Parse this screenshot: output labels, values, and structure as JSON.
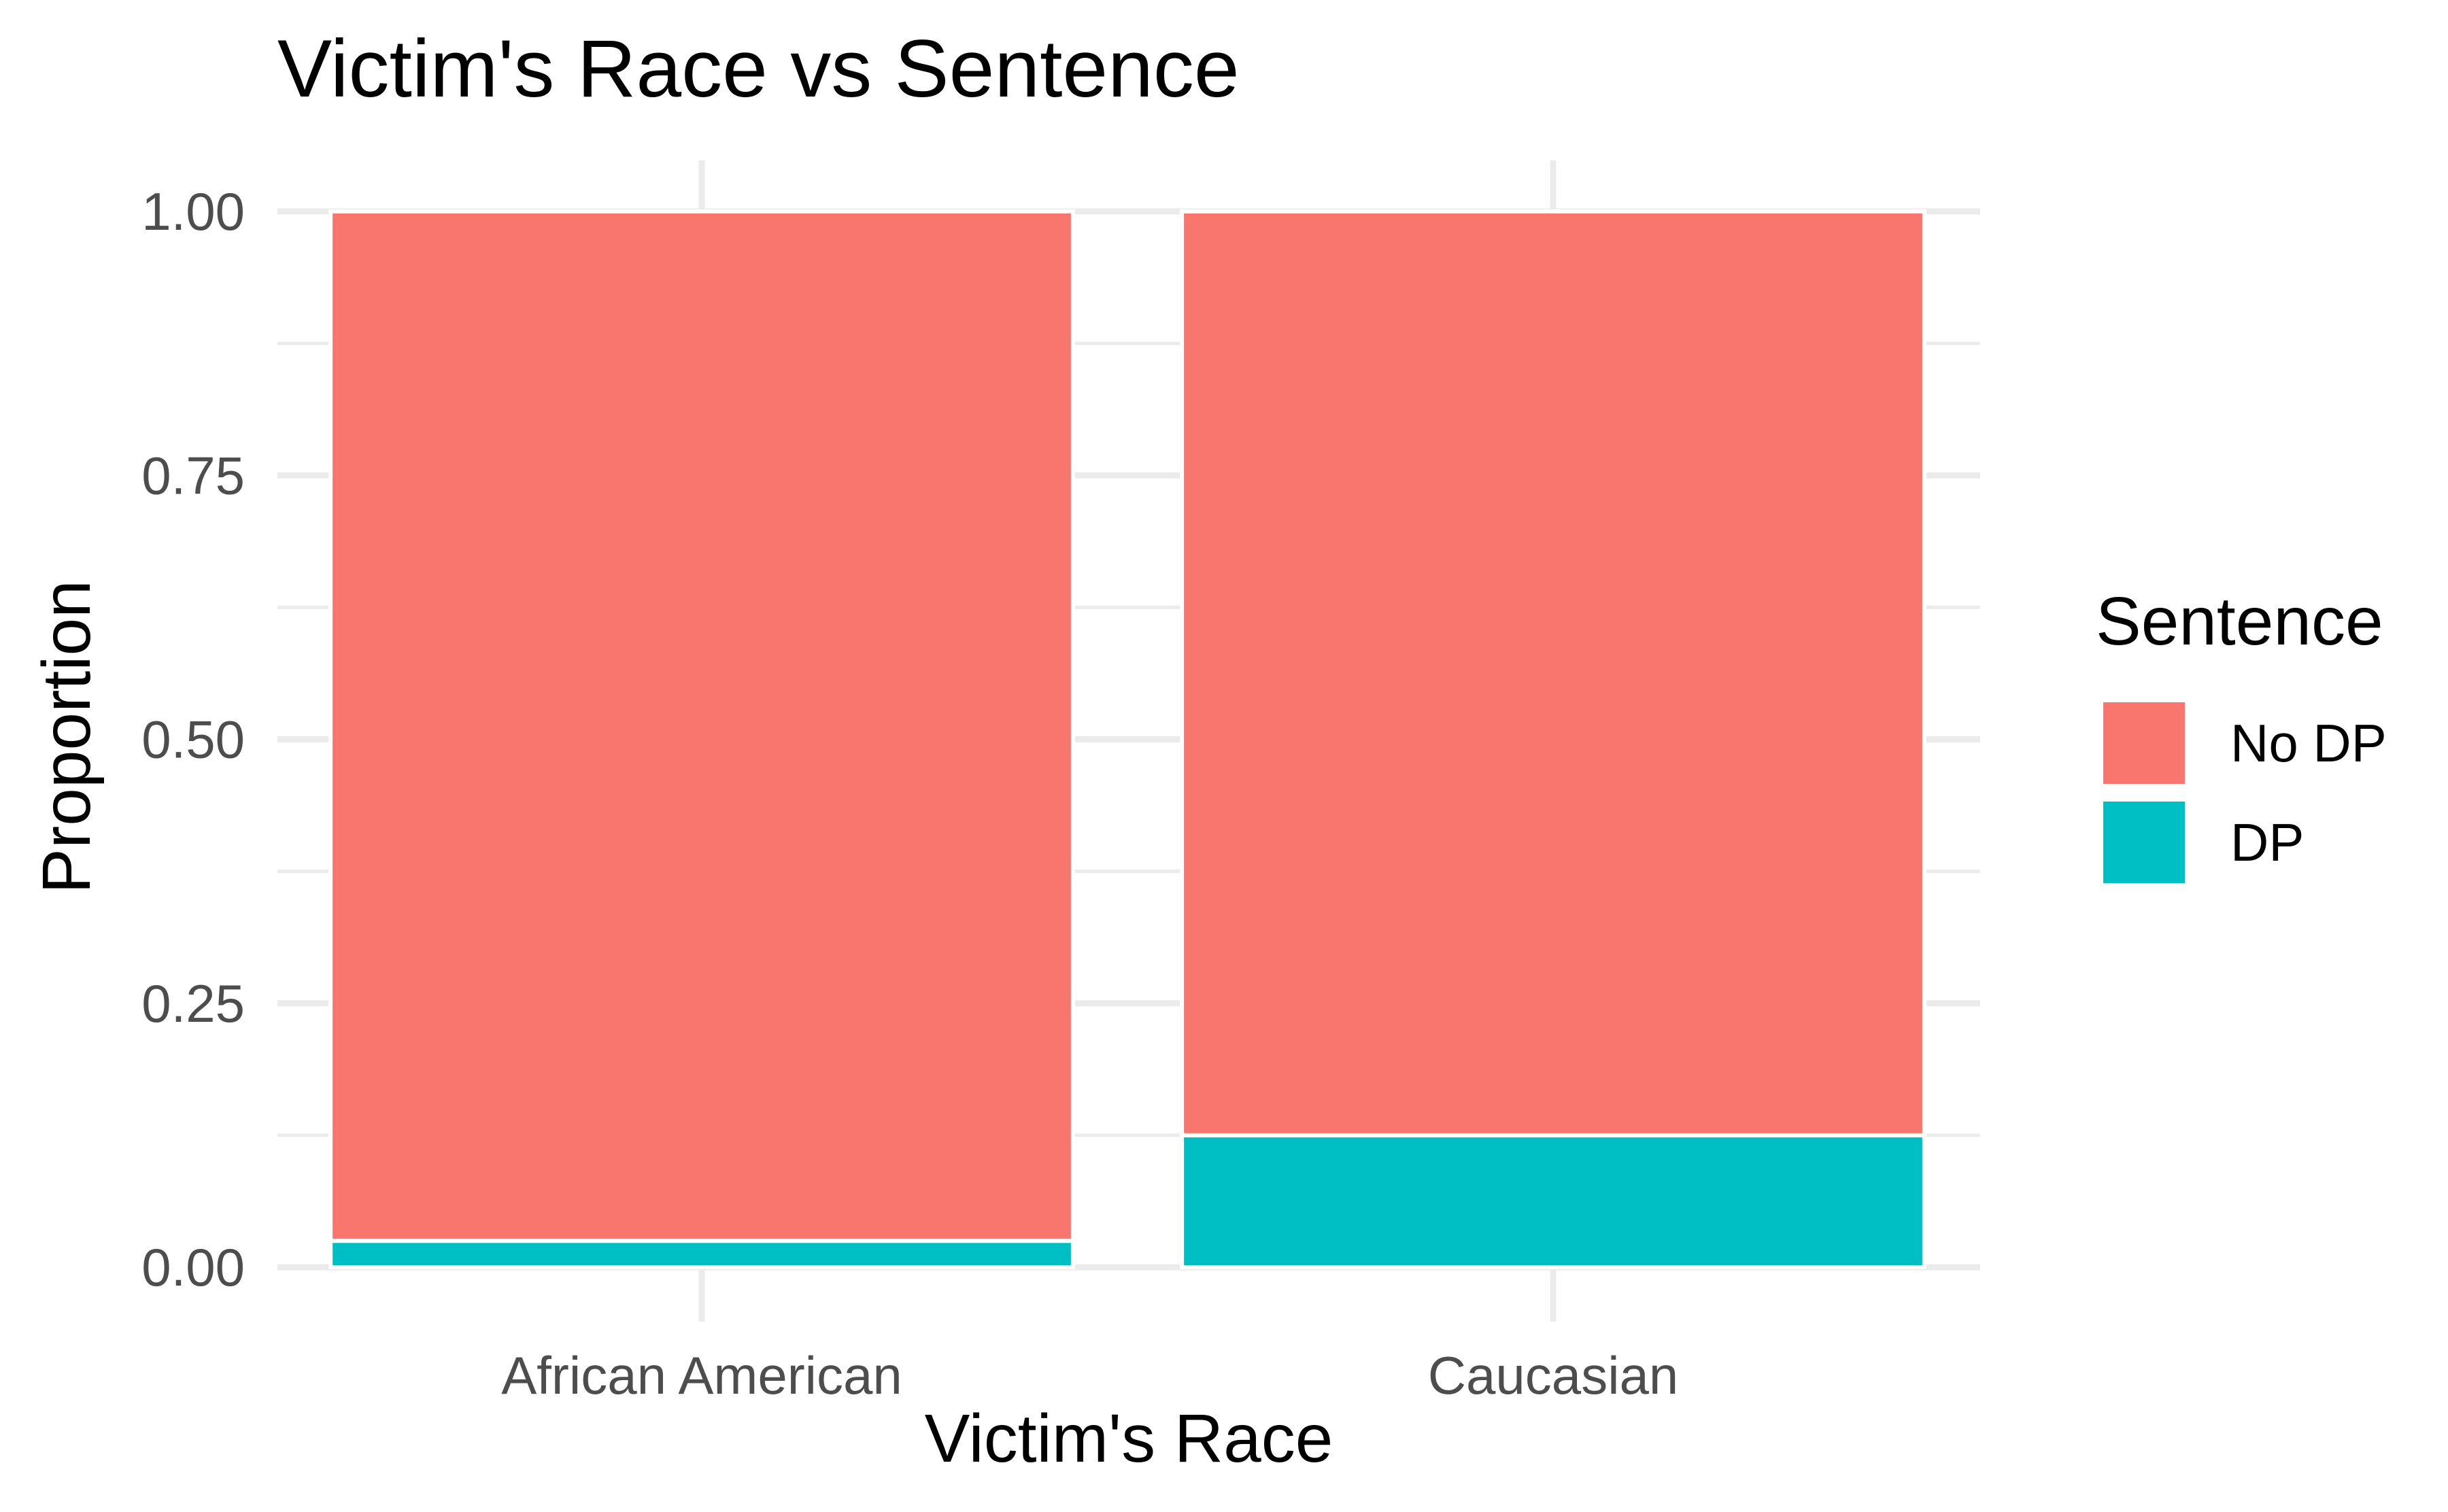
{
  "chart_data": {
    "type": "bar",
    "stacked": true,
    "title": "Victim's Race vs Sentence",
    "xlabel": "Victim's Race",
    "ylabel": "Proportion",
    "categories": [
      "African American",
      "Caucasian"
    ],
    "series": [
      {
        "name": "DP",
        "values": [
          0.025,
          0.125
        ],
        "color": "#00BFC4"
      },
      {
        "name": "No DP",
        "values": [
          0.975,
          0.875
        ],
        "color": "#F8766D"
      }
    ],
    "ylim": [
      0,
      1
    ],
    "yticks": [
      "0.00",
      "0.25",
      "0.50",
      "0.75",
      "1.00"
    ],
    "grid": true,
    "legend": {
      "title": "Sentence",
      "position": "right",
      "items": [
        {
          "label": "No DP",
          "color": "#F8766D"
        },
        {
          "label": "DP",
          "color": "#00BFC4"
        }
      ]
    }
  }
}
